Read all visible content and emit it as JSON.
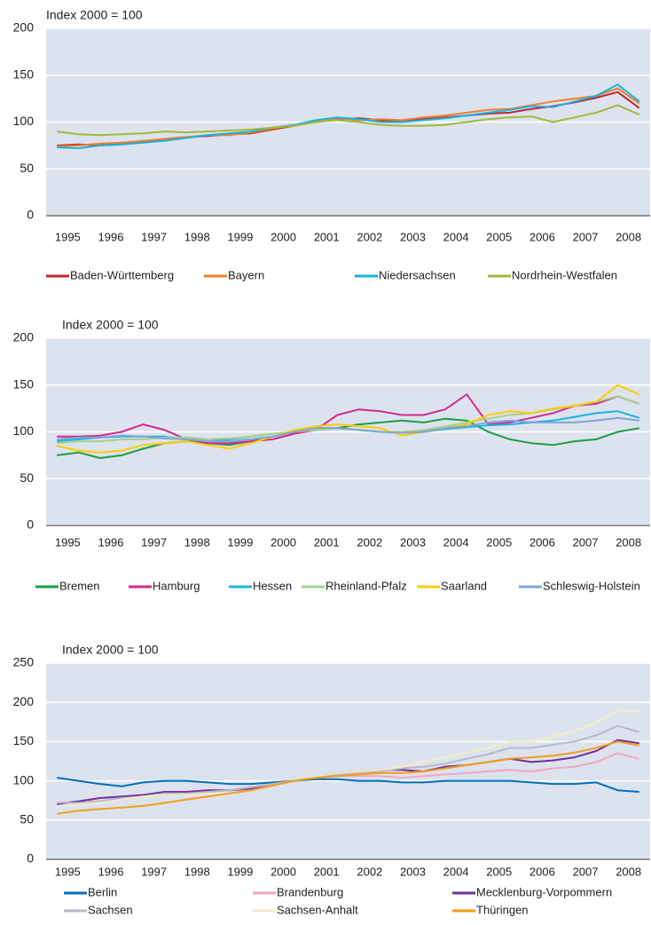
{
  "chart_data": [
    {
      "type": "line",
      "ylabel": "Index 2000 = 100",
      "x": [
        1995.25,
        1995.75,
        1996.25,
        1996.75,
        1997.25,
        1997.75,
        1998.25,
        1998.75,
        1999.25,
        1999.75,
        2000.25,
        2000.75,
        2001.25,
        2001.75,
        2002.25,
        2002.75,
        2003.25,
        2003.75,
        2004.25,
        2004.75,
        2005.25,
        2005.75,
        2006.25,
        2006.75,
        2007.25,
        2007.75,
        2008.25,
        2008.75
      ],
      "categories": [
        "1995",
        "1996",
        "1997",
        "1998",
        "1999",
        "2000",
        "2001",
        "2002",
        "2003",
        "2004",
        "2005",
        "2006",
        "2007",
        "2008"
      ],
      "xlim": [
        1995,
        2009
      ],
      "ylim": [
        0,
        200
      ],
      "yticks": [
        0,
        50,
        100,
        150,
        200
      ],
      "grid": true,
      "background": "#dce3ef",
      "series": [
        {
          "name": "Baden-Württemberg",
          "color": "#c0282e",
          "values": [
            75,
            76,
            75,
            78,
            79,
            82,
            84,
            85,
            87,
            88,
            92,
            96,
            100,
            103,
            104,
            102,
            101,
            103,
            105,
            107,
            109,
            110,
            114,
            117,
            121,
            126,
            132,
            115
          ]
        },
        {
          "name": "Bayern",
          "color": "#f07f30",
          "values": [
            74,
            75,
            77,
            78,
            80,
            82,
            84,
            86,
            86,
            89,
            93,
            97,
            101,
            104,
            102,
            103,
            102,
            105,
            107,
            110,
            113,
            114,
            118,
            122,
            125,
            128,
            136,
            120
          ]
        },
        {
          "name": "Niedersachsen",
          "color": "#19b4e0",
          "values": [
            73,
            72,
            75,
            76,
            78,
            80,
            83,
            86,
            88,
            90,
            94,
            97,
            102,
            105,
            103,
            100,
            100,
            102,
            104,
            107,
            110,
            113,
            117,
            116,
            122,
            128,
            140,
            122
          ]
        },
        {
          "name": "Nordrhein-Westfalen",
          "color": "#a4b83a",
          "values": [
            90,
            87,
            86,
            87,
            88,
            90,
            89,
            90,
            91,
            92,
            94,
            96,
            100,
            102,
            100,
            97,
            96,
            96,
            97,
            100,
            103,
            105,
            106,
            100,
            105,
            110,
            118,
            108
          ]
        }
      ]
    },
    {
      "type": "line",
      "ylabel": "Index 2000 = 100",
      "x": [
        1995.25,
        1995.75,
        1996.25,
        1996.75,
        1997.25,
        1997.75,
        1998.25,
        1998.75,
        1999.25,
        1999.75,
        2000.25,
        2000.75,
        2001.25,
        2001.75,
        2002.25,
        2002.75,
        2003.25,
        2003.75,
        2004.25,
        2004.75,
        2005.25,
        2005.75,
        2006.25,
        2006.75,
        2007.25,
        2007.75,
        2008.25,
        2008.75
      ],
      "categories": [
        "1995",
        "1996",
        "1997",
        "1998",
        "1999",
        "2000",
        "2001",
        "2002",
        "2003",
        "2004",
        "2005",
        "2006",
        "2007",
        "2008"
      ],
      "xlim": [
        1995,
        2009
      ],
      "ylim": [
        0,
        200
      ],
      "yticks": [
        0,
        50,
        100,
        150,
        200
      ],
      "grid": true,
      "background": "#dce3ef",
      "series": [
        {
          "name": "Bremen",
          "color": "#1a9e4a",
          "values": [
            75,
            78,
            72,
            75,
            82,
            88,
            90,
            88,
            86,
            90,
            95,
            100,
            102,
            104,
            108,
            110,
            112,
            110,
            114,
            112,
            100,
            92,
            88,
            86,
            90,
            92,
            100,
            104
          ]
        },
        {
          "name": "Hamburg",
          "color": "#d42a8c",
          "values": [
            95,
            95,
            96,
            100,
            108,
            102,
            92,
            88,
            88,
            90,
            92,
            98,
            102,
            118,
            124,
            122,
            118,
            118,
            124,
            140,
            108,
            110,
            115,
            120,
            128,
            130,
            138,
            130
          ]
        },
        {
          "name": "Hessen",
          "color": "#19b4e0",
          "values": [
            90,
            92,
            94,
            95,
            95,
            95,
            92,
            90,
            92,
            95,
            98,
            100,
            104,
            104,
            102,
            100,
            100,
            100,
            103,
            105,
            107,
            108,
            110,
            112,
            116,
            120,
            122,
            115
          ]
        },
        {
          "name": "Rheinland-Pfalz",
          "color": "#a8d08d",
          "values": [
            88,
            90,
            90,
            92,
            92,
            94,
            94,
            92,
            93,
            95,
            98,
            100,
            102,
            104,
            102,
            100,
            100,
            102,
            106,
            110,
            114,
            118,
            120,
            124,
            128,
            132,
            138,
            130
          ]
        },
        {
          "name": "Saarland",
          "color": "#fecb00",
          "values": [
            85,
            80,
            78,
            80,
            86,
            88,
            90,
            86,
            82,
            88,
            95,
            102,
            106,
            108,
            106,
            104,
            96,
            100,
            104,
            108,
            118,
            122,
            120,
            125,
            128,
            132,
            150,
            140
          ]
        },
        {
          "name": "Schleswig-Holstein",
          "color": "#7ea5d4",
          "values": [
            92,
            94,
            94,
            96,
            95,
            93,
            92,
            90,
            90,
            92,
            95,
            100,
            104,
            104,
            102,
            100,
            99,
            100,
            104,
            106,
            110,
            112,
            110,
            110,
            110,
            112,
            115,
            112
          ]
        }
      ]
    },
    {
      "type": "line",
      "ylabel": "Index 2000 = 100",
      "x": [
        1995.25,
        1995.75,
        1996.25,
        1996.75,
        1997.25,
        1997.75,
        1998.25,
        1998.75,
        1999.25,
        1999.75,
        2000.25,
        2000.75,
        2001.25,
        2001.75,
        2002.25,
        2002.75,
        2003.25,
        2003.75,
        2004.25,
        2004.75,
        2005.25,
        2005.75,
        2006.25,
        2006.75,
        2007.25,
        2007.75,
        2008.25,
        2008.75
      ],
      "categories": [
        "1995",
        "1996",
        "1997",
        "1998",
        "1999",
        "2000",
        "2001",
        "2002",
        "2003",
        "2004",
        "2005",
        "2006",
        "2007",
        "2008"
      ],
      "xlim": [
        1995,
        2009
      ],
      "ylim": [
        0,
        250
      ],
      "yticks": [
        0,
        50,
        100,
        150,
        200,
        250
      ],
      "grid": true,
      "background": "#dce3ef",
      "series": [
        {
          "name": "Berlin",
          "color": "#0070b8",
          "values": [
            104,
            100,
            96,
            93,
            98,
            100,
            100,
            98,
            96,
            96,
            98,
            100,
            102,
            102,
            100,
            100,
            98,
            98,
            100,
            100,
            100,
            100,
            98,
            96,
            96,
            98,
            88,
            86
          ]
        },
        {
          "name": "Brandenburg",
          "color": "#f4a6c6",
          "values": [
            72,
            74,
            74,
            76,
            80,
            84,
            86,
            88,
            88,
            92,
            96,
            100,
            104,
            106,
            106,
            106,
            104,
            106,
            108,
            110,
            112,
            114,
            112,
            116,
            118,
            124,
            135,
            128
          ]
        },
        {
          "name": "Mecklenburg-Vorpommern",
          "color": "#7030a0",
          "values": [
            70,
            74,
            78,
            80,
            82,
            86,
            86,
            88,
            88,
            90,
            95,
            100,
            106,
            110,
            112,
            114,
            114,
            112,
            118,
            120,
            124,
            128,
            124,
            126,
            130,
            138,
            152,
            148
          ]
        },
        {
          "name": "Sachsen",
          "color": "#b8b8c8",
          "values": [
            72,
            72,
            74,
            78,
            80,
            84,
            84,
            86,
            88,
            92,
            96,
            100,
            105,
            108,
            110,
            112,
            116,
            118,
            122,
            128,
            134,
            142,
            142,
            146,
            150,
            158,
            170,
            162
          ]
        },
        {
          "name": "Sachsen-Anhalt",
          "color": "#f5ecc8",
          "values": [
            68,
            70,
            72,
            76,
            80,
            82,
            82,
            84,
            84,
            88,
            94,
            100,
            106,
            110,
            112,
            114,
            118,
            124,
            130,
            136,
            142,
            150,
            150,
            156,
            164,
            174,
            190,
            188
          ]
        },
        {
          "name": "Thüringen",
          "color": "#f59c1a",
          "values": [
            58,
            62,
            64,
            66,
            68,
            72,
            76,
            80,
            84,
            88,
            94,
            100,
            104,
            106,
            108,
            110,
            110,
            112,
            116,
            120,
            124,
            128,
            130,
            132,
            136,
            142,
            150,
            145
          ]
        }
      ]
    }
  ]
}
